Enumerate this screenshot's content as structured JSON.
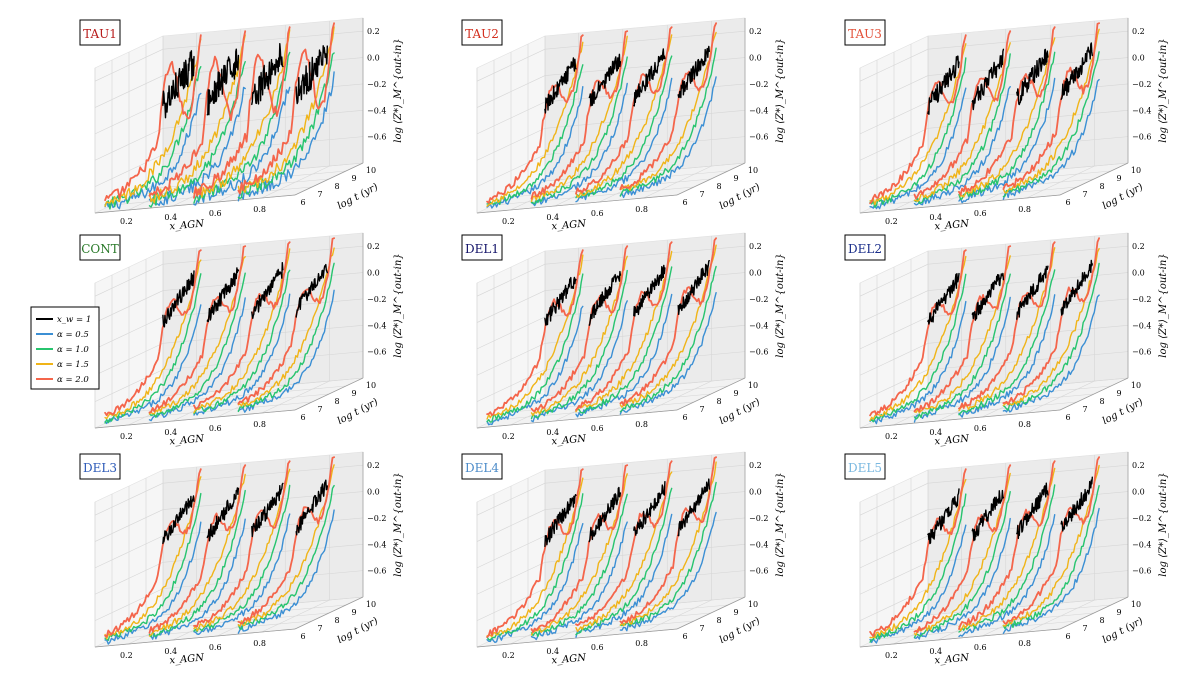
{
  "chart_data": {
    "type": "line",
    "projection": "3d",
    "x_axis": {
      "label": "x_AGN",
      "ticks": [
        "0.2",
        "0.4",
        "0.6",
        "0.8"
      ],
      "range": [
        0.05,
        0.95
      ]
    },
    "y_axis": {
      "label": "log t (yr)",
      "ticks": [
        "6",
        "7",
        "8",
        "9",
        "10"
      ],
      "range": [
        6,
        10
      ]
    },
    "z_axis": {
      "label": "log ⟨Z*⟩_M^{out-in}",
      "ticks": [
        "0.2",
        "0.0",
        "−0.2",
        "−0.4",
        "−0.6"
      ],
      "range": [
        -0.8,
        0.3
      ]
    },
    "curve_x_positions": [
      0.15,
      0.35,
      0.55,
      0.75
    ],
    "legend": [
      {
        "label": "x_w = 1",
        "color": "#000000"
      },
      {
        "label": "α = 0.5",
        "color": "#3b8fd4"
      },
      {
        "label": "α = 1.0",
        "color": "#27c46e"
      },
      {
        "label": "α = 1.5",
        "color": "#f0b418"
      },
      {
        "label": "α = 2.0",
        "color": "#f4654b"
      }
    ],
    "panels": [
      {
        "title": "TAU1",
        "title_color": "#b81c1c",
        "noise": 1.0
      },
      {
        "title": "TAU2",
        "title_color": "#d33020",
        "noise": 0.35
      },
      {
        "title": "TAU3",
        "title_color": "#e3533c",
        "noise": 0.45
      },
      {
        "title": "CONT",
        "title_color": "#2a7a2a",
        "noise": 0.3
      },
      {
        "title": "DEL1",
        "title_color": "#121268",
        "noise": 0.3
      },
      {
        "title": "DEL2",
        "title_color": "#1a2e8a",
        "noise": 0.3
      },
      {
        "title": "DEL3",
        "title_color": "#2c5ab8",
        "noise": 0.3
      },
      {
        "title": "DEL4",
        "title_color": "#4a8ac8",
        "noise": 0.3
      },
      {
        "title": "DEL5",
        "title_color": "#7ab8e0",
        "noise": 0.3
      }
    ]
  }
}
